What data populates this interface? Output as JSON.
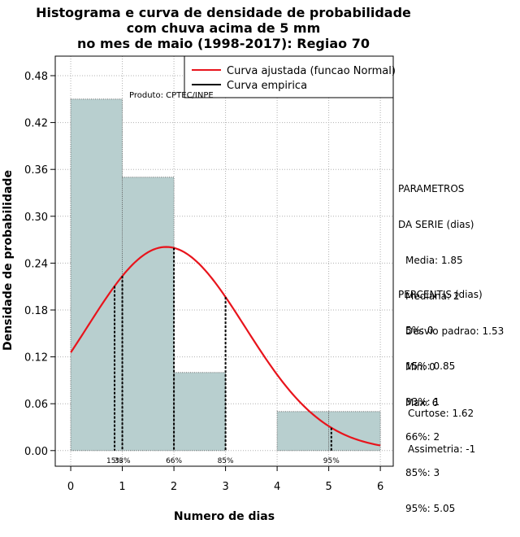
{
  "title_lines": [
    "Histograma e curva de densidade de probabilidade",
    "com chuva acima de 5 mm",
    "no mes de maio (1998-2017): Regiao 70"
  ],
  "product_label": "Produto: CPTEC/INPE",
  "chart_data": {
    "type": "histogram",
    "xlabel": "Numero de dias",
    "ylabel": "Densidade de probabilidade",
    "xlim": [
      -0.3,
      6.25
    ],
    "ylim": [
      -0.02,
      0.505
    ],
    "x_ticks": [
      "0",
      "1",
      "2",
      "3",
      "4",
      "5",
      "6"
    ],
    "y_ticks": [
      "0.00",
      "0.06",
      "0.12",
      "0.18",
      "0.24",
      "0.30",
      "0.36",
      "0.42",
      "0.48"
    ],
    "bars": [
      {
        "x0": 0,
        "x1": 1,
        "density": 0.45
      },
      {
        "x0": 1,
        "x1": 2,
        "density": 0.35
      },
      {
        "x0": 2,
        "x1": 3,
        "density": 0.1
      },
      {
        "x0": 3,
        "x1": 4,
        "density": 0.0
      },
      {
        "x0": 4,
        "x1": 5,
        "density": 0.05
      },
      {
        "x0": 5,
        "x1": 6,
        "density": 0.05
      }
    ],
    "bar_color": "#b8cfcf",
    "curve_color": "#e8141c",
    "normal_fit": {
      "mean": 1.85,
      "sd": 1.53,
      "x_range": [
        0,
        6
      ]
    },
    "percentile_lines": [
      {
        "label": "15%",
        "x": 0.85
      },
      {
        "label": "33%",
        "x": 1
      },
      {
        "label": "66%",
        "x": 2
      },
      {
        "label": "85%",
        "x": 3
      },
      {
        "label": "95%",
        "x": 5.05
      }
    ],
    "legend": [
      {
        "label": "Curva ajustada (funcao Normal)",
        "color": "#e8141c"
      },
      {
        "label": "Curva empirica",
        "color": "#000000"
      }
    ]
  },
  "parametros": {
    "heading": [
      "PARAMETROS",
      "DA SERIE (dias)"
    ],
    "items": [
      "Media: 1.85",
      "Mediana: 2",
      "Desvio padrao: 1.53",
      "Min: 0",
      "Max: 6"
    ]
  },
  "percentis": {
    "heading": "PERCENTIS (dias)",
    "items": [
      "5%: 0",
      "15%: 0.85",
      "33%: 1",
      "66%: 2",
      "85%: 3",
      "95%: 5.05"
    ]
  },
  "shape_stats": [
    "Curtose: 1.62",
    "Assimetria: -1"
  ]
}
